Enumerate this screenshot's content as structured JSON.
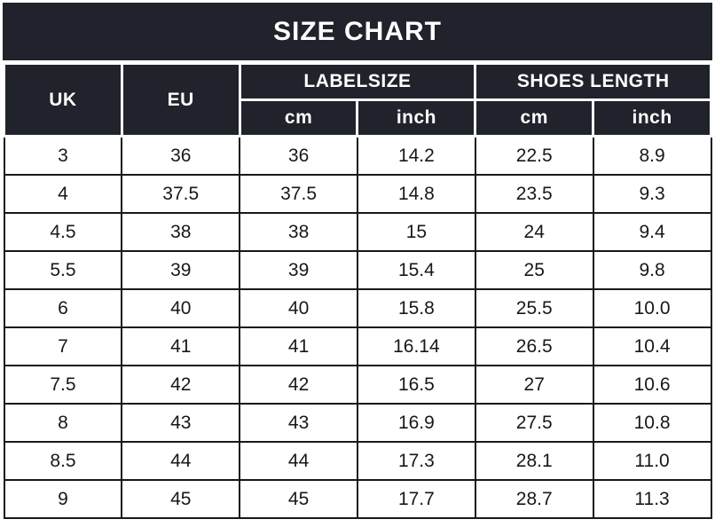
{
  "title": "SIZE CHART",
  "colors": {
    "header_bg": "#20232b",
    "header_text": "#ffffff",
    "body_bg": "#ffffff",
    "body_text": "#17181c",
    "body_border": "#17181c",
    "header_separator": "#ffffff"
  },
  "table": {
    "column_groups": [
      {
        "label": "UK",
        "colspan": 1,
        "rowspan": 2
      },
      {
        "label": "EU",
        "colspan": 1,
        "rowspan": 2
      },
      {
        "label": "LABELSIZE",
        "colspan": 2,
        "rowspan": 1
      },
      {
        "label": "SHOES LENGTH",
        "colspan": 2,
        "rowspan": 1
      }
    ],
    "subheaders": [
      "cm",
      "inch",
      "cm",
      "inch"
    ],
    "rows": [
      [
        "3",
        "36",
        "36",
        "14.2",
        "22.5",
        "8.9"
      ],
      [
        "4",
        "37.5",
        "37.5",
        "14.8",
        "23.5",
        "9.3"
      ],
      [
        "4.5",
        "38",
        "38",
        "15",
        "24",
        "9.4"
      ],
      [
        "5.5",
        "39",
        "39",
        "15.4",
        "25",
        "9.8"
      ],
      [
        "6",
        "40",
        "40",
        "15.8",
        "25.5",
        "10.0"
      ],
      [
        "7",
        "41",
        "41",
        "16.14",
        "26.5",
        "10.4"
      ],
      [
        "7.5",
        "42",
        "42",
        "16.5",
        "27",
        "10.6"
      ],
      [
        "8",
        "43",
        "43",
        "16.9",
        "27.5",
        "10.8"
      ],
      [
        "8.5",
        "44",
        "44",
        "17.3",
        "28.1",
        "11.0"
      ],
      [
        "9",
        "45",
        "45",
        "17.7",
        "28.7",
        "11.3"
      ]
    ]
  },
  "chart_data": {
    "type": "table",
    "title": "SIZE CHART",
    "column_headers": [
      "UK",
      "EU",
      "LABELSIZE cm",
      "LABELSIZE inch",
      "SHOES LENGTH cm",
      "SHOES LENGTH inch"
    ],
    "rows": [
      [
        3,
        36,
        36,
        14.2,
        22.5,
        8.9
      ],
      [
        4,
        37.5,
        37.5,
        14.8,
        23.5,
        9.3
      ],
      [
        4.5,
        38,
        38,
        15,
        24,
        9.4
      ],
      [
        5.5,
        39,
        39,
        15.4,
        25,
        9.8
      ],
      [
        6,
        40,
        40,
        15.8,
        25.5,
        10.0
      ],
      [
        7,
        41,
        41,
        16.14,
        26.5,
        10.4
      ],
      [
        7.5,
        42,
        42,
        16.5,
        27,
        10.6
      ],
      [
        8,
        43,
        43,
        16.9,
        27.5,
        10.8
      ],
      [
        8.5,
        44,
        44,
        17.3,
        28.1,
        11.0
      ],
      [
        9,
        45,
        45,
        17.7,
        28.7,
        11.3
      ]
    ]
  }
}
